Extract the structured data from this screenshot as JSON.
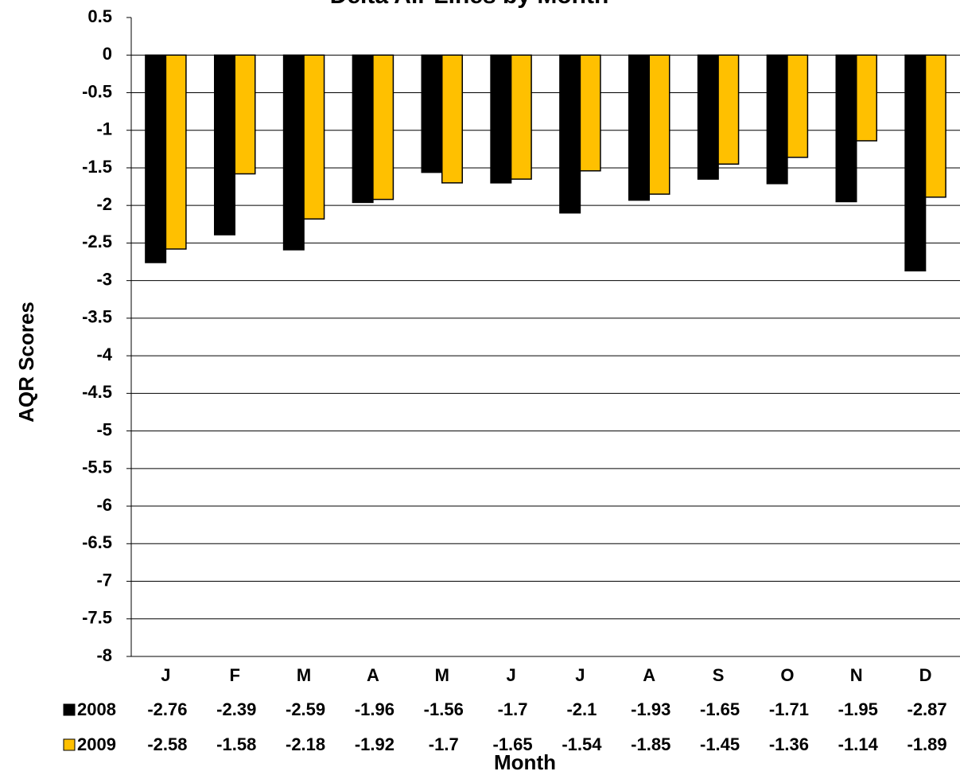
{
  "chart_data": {
    "type": "bar",
    "title": "Delta Air Lines by Month",
    "x_label": "Month",
    "y_label": "AQR Scores",
    "categories": [
      "J",
      "F",
      "M",
      "A",
      "M",
      "J",
      "J",
      "A",
      "S",
      "O",
      "N",
      "D"
    ],
    "series": [
      {
        "name": "2008",
        "color": "#000000",
        "values": [
          -2.76,
          -2.39,
          -2.59,
          -1.96,
          -1.56,
          -1.7,
          -2.1,
          -1.93,
          -1.65,
          -1.71,
          -1.95,
          -2.87
        ]
      },
      {
        "name": "2009",
        "color": "#FFC000",
        "values": [
          -2.58,
          -1.58,
          -2.18,
          -1.92,
          -1.7,
          -1.65,
          -1.54,
          -1.85,
          -1.45,
          -1.36,
          -1.14,
          -1.89
        ]
      }
    ],
    "ylim": [
      -8,
      0.5
    ],
    "yticks": [
      0.5,
      0,
      -0.5,
      -1,
      -1.5,
      -2,
      -2.5,
      -3,
      -3.5,
      -4,
      -4.5,
      -5,
      -5.5,
      -6,
      -6.5,
      -7,
      -7.5,
      -8
    ],
    "grid": true
  }
}
